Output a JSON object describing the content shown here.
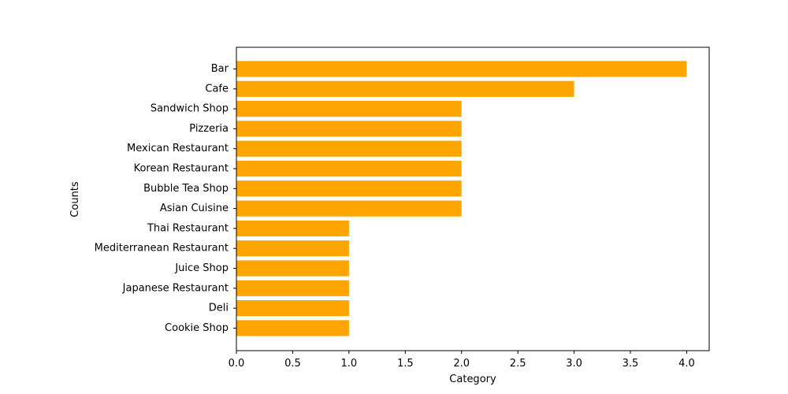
{
  "chart_data": {
    "type": "bar",
    "orientation": "horizontal",
    "title": "",
    "xlabel": "Category",
    "ylabel": "Counts",
    "xlim": [
      0,
      4.2
    ],
    "xticks": [
      "0.0",
      "0.5",
      "1.0",
      "1.5",
      "2.0",
      "2.5",
      "3.0",
      "3.5",
      "4.0"
    ],
    "grid": false,
    "bar_color": "#ffa500",
    "categories": [
      "Bar",
      "Cafe",
      "Sandwich Shop",
      "Pizzeria",
      "Mexican Restaurant",
      "Korean Restaurant",
      "Bubble Tea Shop",
      "Asian Cuisine ",
      "Thai Restaurant",
      "Mediterranean Restaurant",
      "Juice Shop",
      "Japanese Restaurant",
      "Deli",
      "Cookie Shop"
    ],
    "values": [
      4,
      3,
      2,
      2,
      2,
      2,
      2,
      2,
      1,
      1,
      1,
      1,
      1,
      1
    ]
  }
}
